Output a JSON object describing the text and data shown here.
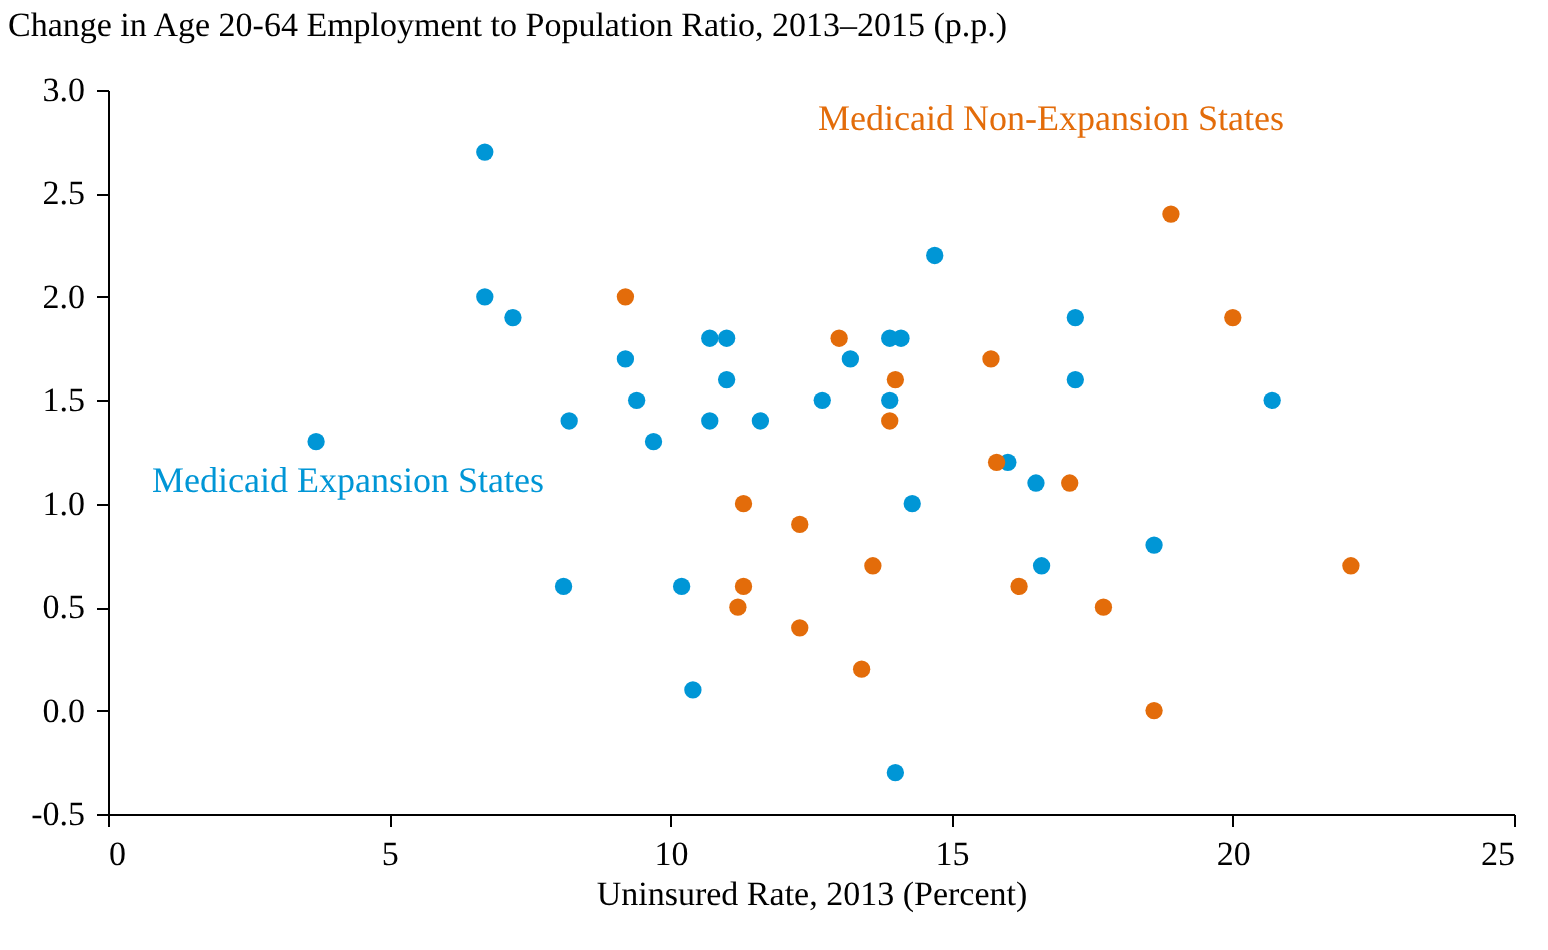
{
  "chart_data": {
    "type": "scatter",
    "title": "Change in Age 20-64 Employment to Population Ratio, 2013–2015 (p.p.)",
    "xlabel": "Uninsured Rate, 2013 (Percent)",
    "xlim": [
      0,
      25
    ],
    "xticks": [
      0,
      5,
      10,
      15,
      20,
      25
    ],
    "ylim": [
      -0.5,
      3.0
    ],
    "yticks": [
      {
        "value": -0.5,
        "label": "-0.5"
      },
      {
        "value": 0,
        "label": "0.0"
      },
      {
        "value": 0.5,
        "label": "0.5"
      },
      {
        "value": 1,
        "label": "1.0"
      },
      {
        "value": 1.5,
        "label": "1.5"
      },
      {
        "value": 2,
        "label": "2.0"
      },
      {
        "value": 2.5,
        "label": "2.5"
      },
      {
        "value": 3,
        "label": "3.0"
      }
    ],
    "grid": false,
    "marker": "circle",
    "series": [
      {
        "name": "Medicaid Expansion States",
        "color": "#0096d6",
        "x": [
          3.7,
          6.7,
          6.7,
          7.2,
          8.1,
          8.2,
          9.2,
          9.4,
          9.7,
          10.2,
          10.4,
          10.7,
          10.7,
          11.0,
          11.0,
          11.6,
          12.7,
          13.2,
          13.9,
          13.9,
          14.1,
          14.0,
          14.3,
          14.7,
          16.0,
          16.5,
          16.6,
          17.2,
          17.2,
          18.6,
          20.7
        ],
        "values": [
          1.3,
          2.7,
          2.0,
          1.9,
          0.6,
          1.4,
          1.7,
          1.5,
          1.3,
          0.6,
          0.1,
          1.4,
          1.8,
          1.8,
          1.6,
          1.4,
          1.5,
          1.7,
          1.5,
          1.8,
          1.8,
          -0.3,
          1.0,
          2.2,
          1.2,
          1.1,
          0.7,
          1.9,
          1.6,
          0.8,
          1.5
        ]
      },
      {
        "name": "Medicaid Non-Expansion States",
        "color": "#e36c0a",
        "x": [
          9.2,
          11.3,
          11.3,
          11.2,
          12.3,
          12.3,
          13.0,
          13.4,
          13.6,
          13.9,
          14.0,
          15.7,
          15.8,
          16.2,
          17.1,
          17.7,
          18.6,
          18.9,
          20.0,
          22.1
        ],
        "values": [
          2.0,
          1.0,
          0.6,
          0.5,
          0.9,
          0.4,
          1.8,
          0.2,
          0.7,
          1.4,
          1.6,
          1.7,
          1.2,
          0.6,
          1.1,
          0.5,
          0.0,
          2.4,
          1.9,
          0.7
        ]
      }
    ]
  }
}
